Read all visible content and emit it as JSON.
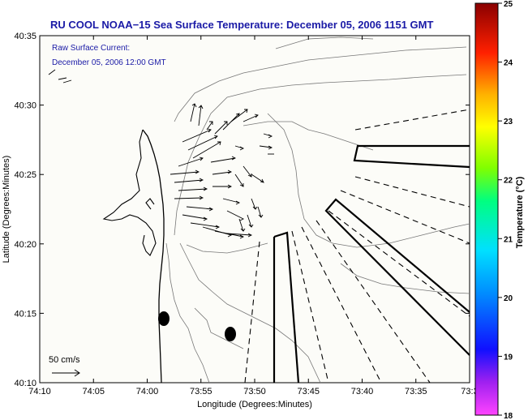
{
  "title": "RU COOL  NOAA−15  Sea Surface Temperature:  December 05, 2006 1151 GMT",
  "annotation": {
    "line1": "Raw Surface Current:",
    "line2": "December 05, 2006 12:00 GMT"
  },
  "scale_label": "50 cm/s",
  "chart_data": {
    "type": "map",
    "xlabel": "Longitude (Degrees:Minutes)",
    "ylabel": "Latitude (Degrees:Minutes)",
    "x_ticks": [
      "74:10",
      "74:05",
      "74:00",
      "73:55",
      "73:50",
      "73:45",
      "73:40",
      "73:35",
      "73:3"
    ],
    "y_ticks": [
      "40:35",
      "40:30",
      "40:25",
      "40:20",
      "40:15",
      "40:10"
    ],
    "colorbar": {
      "label": "Temperature (°C)",
      "ticks": [
        "25",
        "24",
        "23",
        "22",
        "21",
        "20",
        "19",
        "18"
      ],
      "range": [
        18,
        25
      ]
    }
  }
}
